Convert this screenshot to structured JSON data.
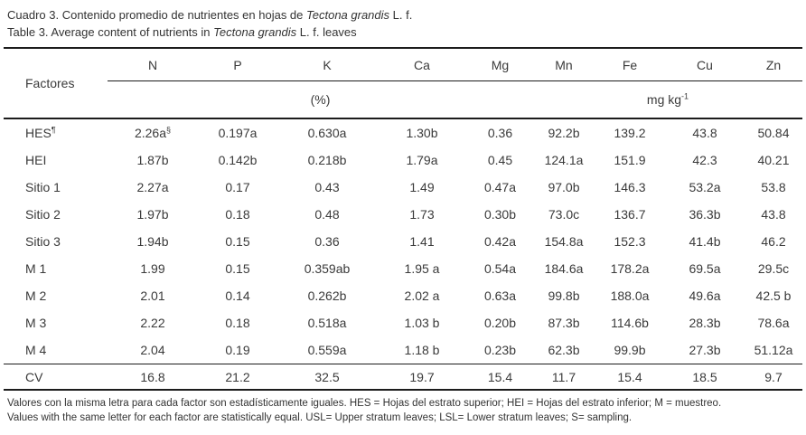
{
  "title": {
    "es": {
      "pre": "Cuadro 3. Contenido promedio de nutrientes en hojas de ",
      "italic": "Tectona grandis",
      "post": " L. f."
    },
    "en": {
      "pre": "Table 3. Average content of nutrients in ",
      "italic": "Tectona grandis",
      "post": " L. f. leaves"
    }
  },
  "table": {
    "factor_header": "Factores",
    "columns": [
      "N",
      "P",
      "K",
      "Ca",
      "Mg",
      "Mn",
      "Fe",
      "Cu",
      "Zn"
    ],
    "unit_groups": [
      {
        "label": "(%)",
        "span": 5
      },
      {
        "label": "mg kg^-1",
        "span": 4
      }
    ],
    "rows": [
      {
        "factor": "HES^¶",
        "values": [
          "2.26a^§",
          "0.197a",
          "0.630a",
          "1.30b",
          "0.36",
          "92.2b",
          "139.2",
          "43.8",
          "50.84"
        ]
      },
      {
        "factor": "HEI",
        "values": [
          "1.87b",
          "0.142b",
          "0.218b",
          "1.79a",
          "0.45",
          "124.1a",
          "151.9",
          "42.3",
          "40.21"
        ]
      },
      {
        "factor": "Sitio 1",
        "values": [
          "2.27a",
          "0.17",
          "0.43",
          "1.49",
          "0.47a",
          "97.0b",
          "146.3",
          "53.2a",
          "53.8"
        ]
      },
      {
        "factor": "Sitio 2",
        "values": [
          "1.97b",
          "0.18",
          "0.48",
          "1.73",
          "0.30b",
          "73.0c",
          "136.7",
          "36.3b",
          "43.8"
        ]
      },
      {
        "factor": "Sitio 3",
        "values": [
          "1.94b",
          "0.15",
          "0.36",
          "1.41",
          "0.42a",
          "154.8a",
          "152.3",
          "41.4b",
          "46.2"
        ]
      },
      {
        "factor": "M 1",
        "values": [
          "1.99",
          "0.15",
          "0.359ab",
          "1.95 a",
          "0.54a",
          "184.6a",
          "178.2a",
          "69.5a",
          "29.5c"
        ]
      },
      {
        "factor": "M 2",
        "values": [
          "2.01",
          "0.14",
          "0.262b",
          "2.02 a",
          "0.63a",
          "99.8b",
          "188.0a",
          "49.6a",
          "42.5 b"
        ]
      },
      {
        "factor": "M 3",
        "values": [
          "2.22",
          "0.18",
          "0.518a",
          "1.03 b",
          "0.20b",
          "87.3b",
          "114.6b",
          "28.3b",
          "78.6a"
        ]
      },
      {
        "factor": "M 4",
        "values": [
          "2.04",
          "0.19",
          "0.559a",
          "1.18 b",
          "0.23b",
          "62.3b",
          "99.9b",
          "27.3b",
          "51.12a"
        ]
      }
    ],
    "cv_row": {
      "factor": "CV",
      "values": [
        "16.8",
        "21.2",
        "32.5",
        "19.7",
        "15.4",
        "11.7",
        "15.4",
        "18.5",
        "9.7"
      ]
    }
  },
  "footnotes": {
    "es": "Valores con la misma letra para cada factor son estadísticamente iguales. HES = Hojas del estrato superior; HEI = Hojas del estrato inferior; M = muestreo.",
    "en": "Values with the same letter for each factor are statistically equal. USL= Upper stratum leaves; LSL= Lower stratum leaves; S= sampling."
  }
}
